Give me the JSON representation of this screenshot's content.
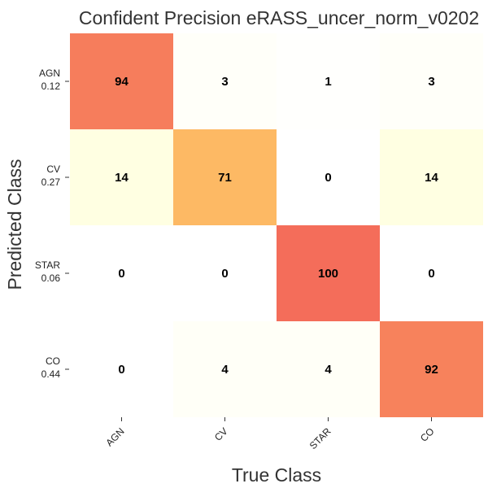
{
  "chart_data": {
    "type": "heatmap",
    "title": "Confident Precision eRASS_uncer_norm_v0202",
    "xlabel": "True Class",
    "ylabel": "Predicted Class",
    "x_categories": [
      "AGN",
      "CV",
      "STAR",
      "CO"
    ],
    "y_categories": [
      "AGN",
      "CV",
      "STAR",
      "CO"
    ],
    "y_sublabels": [
      "0.12",
      "0.27",
      "0.06",
      "0.44"
    ],
    "values": [
      [
        94,
        3,
        1,
        3
      ],
      [
        14,
        71,
        0,
        14
      ],
      [
        0,
        0,
        100,
        0
      ],
      [
        0,
        4,
        4,
        92
      ]
    ],
    "vmin": 0,
    "vmax": 100,
    "colormap": [
      "#ffffff",
      "#ffffcc",
      "#fff176",
      "#fdae61",
      "#f46d5a"
    ],
    "grid": false,
    "colorbar": false
  }
}
